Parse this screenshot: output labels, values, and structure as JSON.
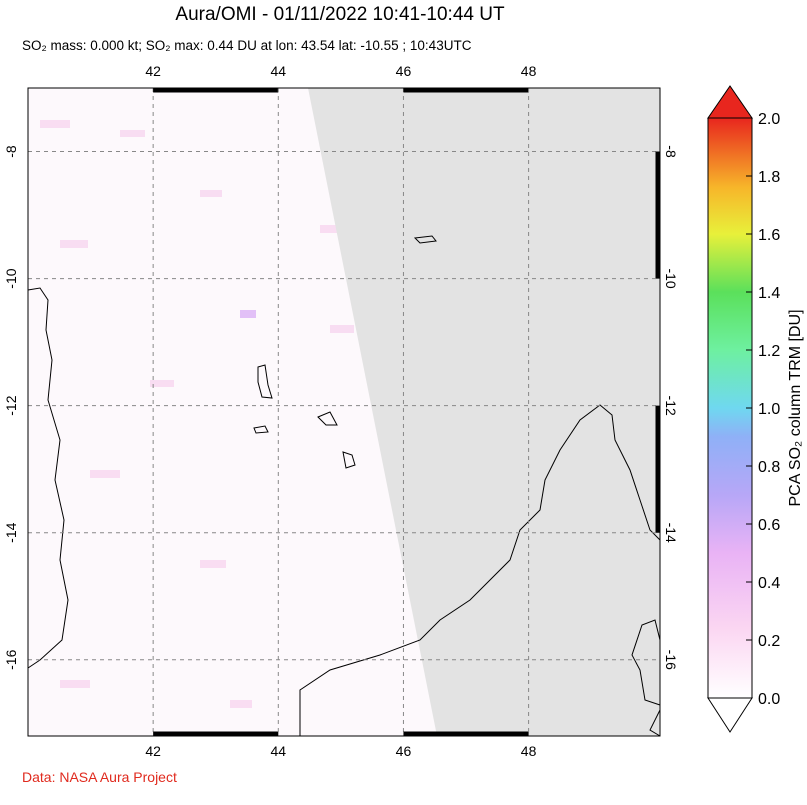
{
  "header": {
    "title": "Aura/OMI - 01/11/2022 10:41-10:44 UT",
    "subtitle": "SO₂ mass: 0.000 kt; SO₂ max: 0.44 DU at lon: 43.54 lat: -10.55 ; 10:43UTC"
  },
  "map": {
    "lon_range": [
      40,
      50.1
    ],
    "lat_range": [
      -7,
      -17.2
    ],
    "lon_ticks": [
      42,
      44,
      46,
      48
    ],
    "lat_ticks": [
      -8,
      -10,
      -12,
      -14,
      -16
    ]
  },
  "colorbar": {
    "label": "PCA SO₂ column TRM [DU]",
    "range": [
      0,
      2
    ],
    "ticks": [
      {
        "value": 0,
        "label": "0.0"
      },
      {
        "value": 0.2,
        "label": "0.2"
      },
      {
        "value": 0.4,
        "label": "0.4"
      },
      {
        "value": 0.6,
        "label": "0.6"
      },
      {
        "value": 0.8,
        "label": "0.8"
      },
      {
        "value": 1,
        "label": "1.0"
      },
      {
        "value": 1.2,
        "label": "1.2"
      },
      {
        "value": 1.4,
        "label": "1.4"
      },
      {
        "value": 1.6,
        "label": "1.6"
      },
      {
        "value": 1.8,
        "label": "1.8"
      },
      {
        "value": 2,
        "label": "2.0"
      }
    ]
  },
  "footer": {
    "credit": "Data: NASA Aura Project"
  }
}
